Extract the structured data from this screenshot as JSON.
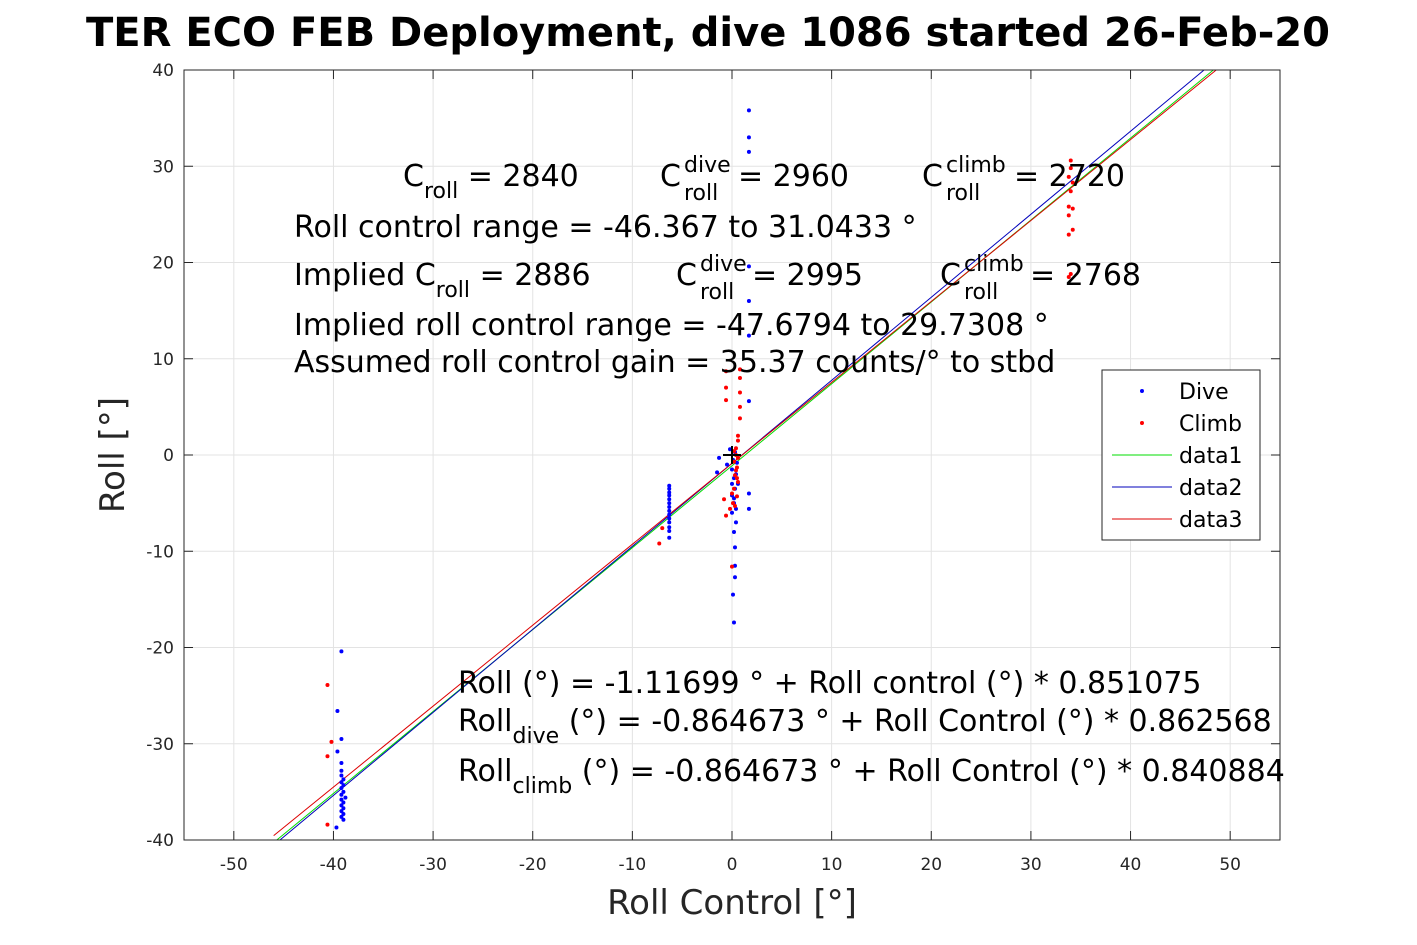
{
  "chart_data": {
    "type": "scatter",
    "title": "TER ECO FEB Deployment, dive 1086 started 26-Feb-20",
    "xlabel": "Roll Control [°]",
    "ylabel": "Roll [°]",
    "xlim": [
      -55,
      55
    ],
    "ylim": [
      -40,
      40
    ],
    "xticks": [
      -50,
      -40,
      -30,
      -20,
      -10,
      0,
      10,
      20,
      30,
      40,
      50
    ],
    "yticks": [
      -40,
      -30,
      -20,
      -10,
      0,
      10,
      20,
      30,
      40
    ],
    "xtick_labels": [
      "-50",
      "-40",
      "-30",
      "-20",
      "-10",
      "0",
      "10",
      "20",
      "30",
      "40",
      "50"
    ],
    "ytick_labels": [
      "-40",
      "-30",
      "-20",
      "-10",
      "0",
      "10",
      "20",
      "30",
      "40"
    ],
    "grid": true,
    "legend_position": "right",
    "series": [
      {
        "name": "Dive",
        "kind": "points",
        "color": "#0000ff",
        "points": [
          [
            -39.2,
            -20.4
          ],
          [
            -39.6,
            -26.6
          ],
          [
            -39.2,
            -29.5
          ],
          [
            -39.6,
            -30.8
          ],
          [
            -39.2,
            -32.0
          ],
          [
            -39.2,
            -32.8
          ],
          [
            -39.2,
            -33.3
          ],
          [
            -39.0,
            -33.7
          ],
          [
            -39.2,
            -34.0
          ],
          [
            -39.0,
            -34.3
          ],
          [
            -39.2,
            -34.6
          ],
          [
            -39.0,
            -35.0
          ],
          [
            -39.2,
            -35.3
          ],
          [
            -38.8,
            -35.6
          ],
          [
            -39.2,
            -35.8
          ],
          [
            -39.0,
            -36.1
          ],
          [
            -39.2,
            -36.4
          ],
          [
            -39.0,
            -36.7
          ],
          [
            -39.2,
            -37.0
          ],
          [
            -39.0,
            -37.3
          ],
          [
            -39.2,
            -37.6
          ],
          [
            -39.0,
            -37.9
          ],
          [
            -39.7,
            -38.7
          ],
          [
            -6.3,
            -3.2
          ],
          [
            -6.3,
            -3.5
          ],
          [
            -6.3,
            -3.9
          ],
          [
            -6.3,
            -4.2
          ],
          [
            -6.3,
            -4.6
          ],
          [
            -6.3,
            -5.0
          ],
          [
            -6.3,
            -5.4
          ],
          [
            -6.3,
            -5.8
          ],
          [
            -6.3,
            -6.2
          ],
          [
            -6.3,
            -6.6
          ],
          [
            -6.3,
            -7.0
          ],
          [
            -6.3,
            -7.5
          ],
          [
            -6.3,
            -7.9
          ],
          [
            -6.3,
            -8.6
          ],
          [
            1.7,
            35.8
          ],
          [
            1.7,
            33.0
          ],
          [
            1.7,
            31.5
          ],
          [
            1.7,
            19.6
          ],
          [
            1.7,
            16.0
          ],
          [
            1.7,
            12.4
          ],
          [
            1.7,
            5.6
          ],
          [
            1.7,
            -4.0
          ],
          [
            1.7,
            -5.6
          ],
          [
            -1.3,
            -0.3
          ],
          [
            -1.5,
            -1.8
          ],
          [
            -0.5,
            -1.0
          ],
          [
            0.0,
            -1.5
          ],
          [
            0.2,
            -2.4
          ],
          [
            0.0,
            -3.0
          ],
          [
            0.3,
            -3.5
          ],
          [
            0.0,
            -4.2
          ],
          [
            0.2,
            -5.0
          ],
          [
            0.0,
            -6.0
          ],
          [
            0.4,
            -7.0
          ],
          [
            0.2,
            -8.0
          ],
          [
            0.3,
            -9.6
          ],
          [
            0.3,
            -11.5
          ],
          [
            0.3,
            -12.7
          ],
          [
            0.1,
            -14.5
          ],
          [
            0.2,
            -17.4
          ],
          [
            0.1,
            -0.5
          ],
          [
            0.3,
            0.3
          ],
          [
            -0.2,
            0.6
          ],
          [
            0.5,
            -0.8
          ],
          [
            0.4,
            -2.0
          ],
          [
            0.6,
            -3.0
          ],
          [
            0.2,
            -4.5
          ],
          [
            0.4,
            -5.6
          ]
        ]
      },
      {
        "name": "Climb",
        "kind": "points",
        "color": "#ff0000",
        "points": [
          [
            -40.6,
            -23.9
          ],
          [
            -40.2,
            -29.8
          ],
          [
            -40.6,
            -31.3
          ],
          [
            -40.6,
            -38.4
          ],
          [
            -7.3,
            -9.2
          ],
          [
            -7.0,
            -7.6
          ],
          [
            34.0,
            30.6
          ],
          [
            34.0,
            29.8
          ],
          [
            33.8,
            28.9
          ],
          [
            34.2,
            28.3
          ],
          [
            34.0,
            27.4
          ],
          [
            33.8,
            25.8
          ],
          [
            34.2,
            25.6
          ],
          [
            33.8,
            24.9
          ],
          [
            34.2,
            23.4
          ],
          [
            33.8,
            22.9
          ],
          [
            34.0,
            18.8
          ],
          [
            33.8,
            18.5
          ],
          [
            -0.6,
            8.7
          ],
          [
            -0.6,
            7.0
          ],
          [
            -0.6,
            5.7
          ],
          [
            0.8,
            8.9
          ],
          [
            0.8,
            8.0
          ],
          [
            0.8,
            6.5
          ],
          [
            0.8,
            5.0
          ],
          [
            0.8,
            3.8
          ],
          [
            0.6,
            2.0
          ],
          [
            0.6,
            1.5
          ],
          [
            0.4,
            0.7
          ],
          [
            0.4,
            0.0
          ],
          [
            0.2,
            -0.7
          ],
          [
            0.5,
            -1.3
          ],
          [
            0.3,
            -2.1
          ],
          [
            0.6,
            -2.8
          ],
          [
            0.2,
            -3.5
          ],
          [
            0.5,
            -4.3
          ],
          [
            0.1,
            -5.0
          ],
          [
            -0.8,
            -4.6
          ],
          [
            -0.6,
            -6.3
          ],
          [
            -0.2,
            -5.6
          ],
          [
            0.0,
            -4.0
          ],
          [
            0.3,
            -5.3
          ],
          [
            0.0,
            -11.6
          ],
          [
            0.4,
            -1.6
          ],
          [
            0.6,
            -0.3
          ],
          [
            0.2,
            0.4
          ],
          [
            0.5,
            -2.4
          ]
        ]
      },
      {
        "name": "data1",
        "kind": "line",
        "color": "#00dd00",
        "intercept": -1.11699,
        "slope": 0.851075
      },
      {
        "name": "data2",
        "kind": "line",
        "color": "#0000bb",
        "intercept": -0.864673,
        "slope": 0.862568
      },
      {
        "name": "data3",
        "kind": "line",
        "color": "#dd0000",
        "intercept": -0.864673,
        "slope": 0.840884
      }
    ],
    "marker": {
      "x": 0,
      "y": 0,
      "symbol": "+"
    }
  },
  "annotations": {
    "c_letter": "C",
    "roll_sub": "roll",
    "dive_sup": "dive",
    "climb_sup": "climb",
    "c_roll_value": " = 2840",
    "c_roll_dive_value": " = 2960",
    "c_roll_climb_value": " = 2720",
    "roll_control_range": "Roll control range = -46.367 to 31.0433 °",
    "implied_prefix": "Implied ",
    "implied_c_roll_value": " = 2886",
    "implied_c_dive_value": " = 2995",
    "implied_c_climb_value": " = 2768",
    "implied_range": "Implied roll control range = -47.6794 to 29.7308 °",
    "assumed_gain": "Assumed roll control gain = 35.37 counts/° to stbd",
    "fit_all": "Roll (°) = -1.11699 ° + Roll control (°) * 0.851075",
    "fit_dive_prefix": "Roll",
    "fit_dive_sub": "dive",
    "fit_dive_rest": " (°) = -0.864673 ° + Roll Control (°) * 0.862568",
    "fit_climb_prefix": "Roll",
    "fit_climb_sub": "climb",
    "fit_climb_rest": " (°) = -0.864673 ° + Roll Control (°) * 0.840884"
  }
}
